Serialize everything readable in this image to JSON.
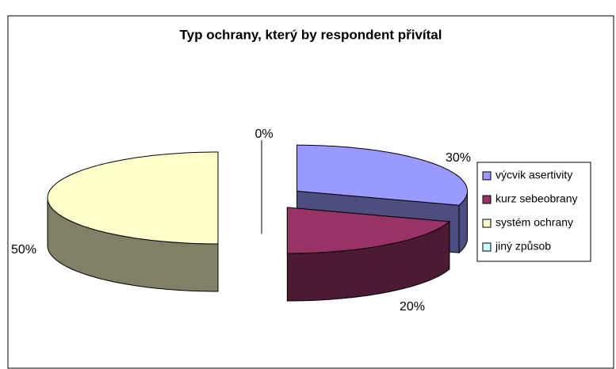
{
  "chart_data": {
    "type": "pie",
    "title": "Typ ochrany, který by respondent přivítal",
    "categories": [
      "výcvik asertivity",
      "kurz sebeobrany",
      "systém ochrany",
      "jiný způsob"
    ],
    "values": [
      30,
      20,
      50,
      0
    ],
    "value_labels": [
      "30%",
      "20%",
      "50%",
      "0%"
    ],
    "colors": [
      "#9999ff",
      "#993366",
      "#ffffcc",
      "#ccffff"
    ],
    "legend": "right"
  }
}
